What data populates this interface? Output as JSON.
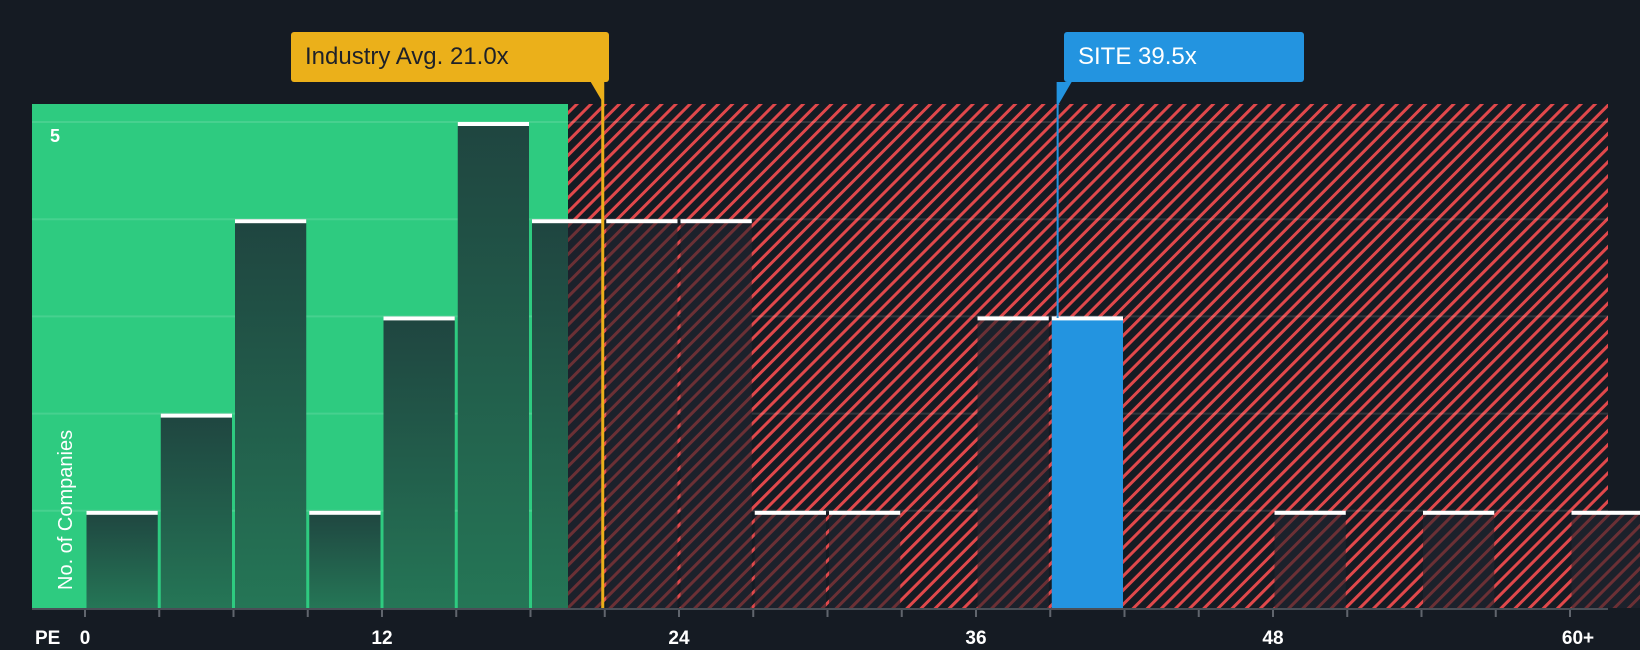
{
  "chart_data": {
    "type": "bar",
    "title": "",
    "xlabel": "PE",
    "ylabel": "No. of Companies",
    "x_tick_labels": [
      "0",
      "12",
      "24",
      "36",
      "48",
      "60+"
    ],
    "x_ticks": [
      0,
      12,
      24,
      36,
      48,
      60
    ],
    "y_tick_labels": [
      "5"
    ],
    "ylim": [
      0,
      5.15
    ],
    "bin_width": 3,
    "bins": [
      {
        "start": 0,
        "end": 3,
        "count": 1
      },
      {
        "start": 3,
        "end": 6,
        "count": 2
      },
      {
        "start": 6,
        "end": 9,
        "count": 4
      },
      {
        "start": 9,
        "end": 12,
        "count": 1
      },
      {
        "start": 12,
        "end": 15,
        "count": 3
      },
      {
        "start": 15,
        "end": 18,
        "count": 5
      },
      {
        "start": 18,
        "end": 21,
        "count": 4
      },
      {
        "start": 21,
        "end": 24,
        "count": 4
      },
      {
        "start": 24,
        "end": 27,
        "count": 4
      },
      {
        "start": 27,
        "end": 30,
        "count": 1
      },
      {
        "start": 30,
        "end": 33,
        "count": 1
      },
      {
        "start": 33,
        "end": 36,
        "count": 0
      },
      {
        "start": 36,
        "end": 39,
        "count": 3
      },
      {
        "start": 39,
        "end": 42,
        "count": 3,
        "highlight": true
      },
      {
        "start": 42,
        "end": 45,
        "count": 0
      },
      {
        "start": 45,
        "end": 48,
        "count": 0
      },
      {
        "start": 48,
        "end": 51,
        "count": 1
      },
      {
        "start": 51,
        "end": 54,
        "count": 0
      },
      {
        "start": 54,
        "end": 57,
        "count": 1
      },
      {
        "start": 57,
        "end": 60,
        "count": 0
      },
      {
        "start": 60,
        "end": 63,
        "count": 1
      }
    ],
    "annotations": [
      {
        "label": "Industry Avg. 21.0x",
        "value": 21.0,
        "color": "#ebb01a"
      },
      {
        "label": "SITE 39.5x",
        "value": 39.5,
        "color": "#2394e0"
      }
    ],
    "regions": [
      {
        "name": "undervalued",
        "from": 0,
        "to": 20.0,
        "color": "#2ecb80"
      },
      {
        "name": "overvalued",
        "from": 20.0,
        "to": 64.5,
        "color": "#e0484b",
        "pattern": "diagonal-hatch"
      }
    ],
    "grid": true,
    "legend": null
  },
  "labels": {
    "industry_callout": "Industry Avg. 21.0x",
    "site_callout": "SITE 39.5x",
    "y_axis_title": "No. of Companies",
    "x_axis_title": "PE",
    "y_top_tick": "5"
  },
  "colors": {
    "background": "#151b23",
    "green_zone": "#2ecb80",
    "hatch_red": "#e0484b",
    "industry_yellow": "#ebb01a",
    "site_blue": "#2394e0",
    "bar_dark_top": "#1f4540",
    "bar_dark_bottom": "#257656",
    "bar_cap": "#ffffff"
  }
}
